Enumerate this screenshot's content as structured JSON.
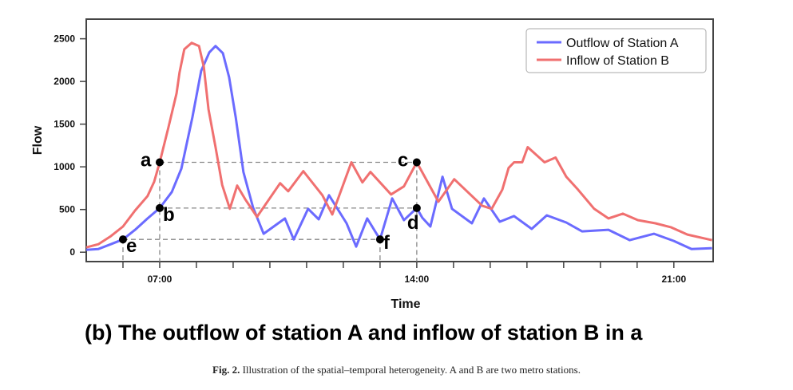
{
  "chart_data": {
    "type": "line",
    "title": "",
    "subtitle": "(b) The outflow of station A and inflow of station B in a",
    "xlabel": "Time",
    "ylabel": "Flow",
    "xlim": [
      5.0,
      22.07
    ],
    "ylim": [
      -110,
      2730
    ],
    "x_ticks_hours": [
      6,
      7,
      8,
      9,
      10,
      11,
      12,
      13,
      14,
      15,
      16,
      17,
      18,
      19,
      20,
      21
    ],
    "x_tick_labels": [
      {
        "hour": 7,
        "label": "07:00"
      },
      {
        "hour": 14,
        "label": "14:00"
      },
      {
        "hour": 21,
        "label": "21:00"
      }
    ],
    "y_ticks": [
      0,
      500,
      1000,
      1500,
      2000,
      2500
    ],
    "grid": false,
    "legend_position": "upper right",
    "series": [
      {
        "name": "Outflow of Station A",
        "color": "#6b6bff",
        "points": [
          [
            5.0,
            28
          ],
          [
            5.33,
            38
          ],
          [
            5.67,
            94
          ],
          [
            6.0,
            150
          ],
          [
            6.33,
            263
          ],
          [
            6.67,
            395
          ],
          [
            7.0,
            517
          ],
          [
            7.33,
            705
          ],
          [
            7.59,
            978
          ],
          [
            7.89,
            1579
          ],
          [
            8.13,
            2124
          ],
          [
            8.35,
            2340
          ],
          [
            8.52,
            2415
          ],
          [
            8.72,
            2331
          ],
          [
            8.89,
            2049
          ],
          [
            9.07,
            1579
          ],
          [
            9.28,
            940
          ],
          [
            9.54,
            526
          ],
          [
            9.83,
            216
          ],
          [
            10.41,
            395
          ],
          [
            10.65,
            150
          ],
          [
            11.04,
            508
          ],
          [
            11.33,
            385
          ],
          [
            11.61,
            667
          ],
          [
            12.09,
            338
          ],
          [
            12.35,
            66
          ],
          [
            12.65,
            395
          ],
          [
            13.0,
            150
          ],
          [
            13.33,
            630
          ],
          [
            13.65,
            376
          ],
          [
            14.0,
            517
          ],
          [
            14.15,
            404
          ],
          [
            14.37,
            301
          ],
          [
            14.7,
            884
          ],
          [
            14.96,
            508
          ],
          [
            15.5,
            338
          ],
          [
            15.83,
            630
          ],
          [
            16.26,
            357
          ],
          [
            16.65,
            423
          ],
          [
            17.13,
            273
          ],
          [
            17.54,
            432
          ],
          [
            18.07,
            348
          ],
          [
            18.5,
            244
          ],
          [
            19.22,
            263
          ],
          [
            19.8,
            141
          ],
          [
            20.46,
            216
          ],
          [
            21.0,
            132
          ],
          [
            21.48,
            38
          ],
          [
            22.04,
            47
          ]
        ]
      },
      {
        "name": "Inflow of Station B",
        "color": "#f07070",
        "points": [
          [
            5.0,
            56
          ],
          [
            5.33,
            94
          ],
          [
            5.67,
            188
          ],
          [
            6.0,
            301
          ],
          [
            6.33,
            489
          ],
          [
            6.67,
            658
          ],
          [
            6.85,
            827
          ],
          [
            7.0,
            1053
          ],
          [
            7.24,
            1466
          ],
          [
            7.46,
            1861
          ],
          [
            7.54,
            2105
          ],
          [
            7.67,
            2378
          ],
          [
            7.87,
            2453
          ],
          [
            8.07,
            2415
          ],
          [
            8.2,
            2171
          ],
          [
            8.33,
            1673
          ],
          [
            8.52,
            1231
          ],
          [
            8.7,
            789
          ],
          [
            8.91,
            508
          ],
          [
            9.11,
            780
          ],
          [
            9.33,
            620
          ],
          [
            9.65,
            414
          ],
          [
            10.28,
            808
          ],
          [
            10.5,
            714
          ],
          [
            10.91,
            949
          ],
          [
            11.43,
            667
          ],
          [
            11.7,
            442
          ],
          [
            12.22,
            1053
          ],
          [
            12.52,
            818
          ],
          [
            12.74,
            940
          ],
          [
            13.3,
            677
          ],
          [
            13.65,
            771
          ],
          [
            14.0,
            1053
          ],
          [
            14.59,
            592
          ],
          [
            15.02,
            855
          ],
          [
            15.78,
            545
          ],
          [
            16.04,
            508
          ],
          [
            16.33,
            733
          ],
          [
            16.5,
            987
          ],
          [
            16.65,
            1053
          ],
          [
            16.87,
            1053
          ],
          [
            17.02,
            1231
          ],
          [
            17.48,
            1053
          ],
          [
            17.78,
            1109
          ],
          [
            18.07,
            884
          ],
          [
            18.39,
            733
          ],
          [
            18.83,
            508
          ],
          [
            19.22,
            395
          ],
          [
            19.61,
            451
          ],
          [
            20.02,
            376
          ],
          [
            20.5,
            338
          ],
          [
            20.93,
            291
          ],
          [
            21.37,
            207
          ],
          [
            22.04,
            141
          ]
        ]
      }
    ],
    "annotations": [
      {
        "label": "a",
        "hour": 7.0,
        "flow": 1053,
        "series": "Inflow of Station B"
      },
      {
        "label": "b",
        "hour": 7.0,
        "flow": 517,
        "series": "Outflow of Station A"
      },
      {
        "label": "c",
        "hour": 14.0,
        "flow": 1053,
        "series": "Inflow of Station B"
      },
      {
        "label": "d",
        "hour": 14.0,
        "flow": 517,
        "series": "Outflow of Station A"
      },
      {
        "label": "e",
        "hour": 6.0,
        "flow": 150,
        "series": "Outflow of Station A"
      },
      {
        "label": "f",
        "hour": 13.0,
        "flow": 150,
        "series": "Outflow of Station A"
      }
    ]
  },
  "figure": {
    "subtitle": "(b) The outflow of station A and inflow of station B in a",
    "caption_prefix": "Fig. 2.",
    "caption_text": " Illustration of the spatial–temporal heterogeneity. A and B are two metro stations."
  },
  "axes": {
    "xlabel": "Time",
    "ylabel": "Flow"
  },
  "legend": {
    "items": [
      {
        "label": "Outflow of Station A",
        "color": "#6b6bff"
      },
      {
        "label": "Inflow of Station B",
        "color": "#f07070"
      }
    ]
  }
}
